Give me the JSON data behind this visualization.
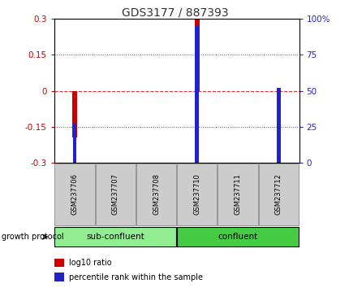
{
  "title": "GDS3177 / 887393",
  "samples": [
    "GSM237706",
    "GSM237707",
    "GSM237708",
    "GSM237710",
    "GSM237711",
    "GSM237712"
  ],
  "log10_ratio": [
    -0.195,
    0.0,
    0.0,
    0.295,
    0.0,
    0.0
  ],
  "percentile_rank": [
    27.0,
    50.0,
    50.0,
    95.0,
    50.0,
    52.0
  ],
  "ylim_left": [
    -0.3,
    0.3
  ],
  "ylim_right": [
    0,
    100
  ],
  "yticks_left": [
    -0.3,
    -0.15,
    0.0,
    0.15,
    0.3
  ],
  "yticks_right": [
    0,
    25,
    50,
    75,
    100
  ],
  "ytick_labels_left": [
    "-0.3",
    "-0.15",
    "0",
    "0.15",
    "0.3"
  ],
  "ytick_labels_right": [
    "0",
    "25",
    "50",
    "75",
    "100%"
  ],
  "dotted_lines_dotted": [
    -0.15,
    0.15
  ],
  "zero_line_y": 0.0,
  "zero_line_color": "#dd3333",
  "dotted_color": "#555555",
  "bar_color_log10": "#cc0000",
  "bar_color_pct": "#2222cc",
  "groups": [
    {
      "label": "sub-confluent",
      "samples": [
        0,
        1,
        2
      ],
      "color": "#90ee90"
    },
    {
      "label": "confluent",
      "samples": [
        3,
        4,
        5
      ],
      "color": "#44cc44"
    }
  ],
  "group_label": "growth protocol",
  "legend_items": [
    {
      "label": "log10 ratio",
      "color": "#cc0000"
    },
    {
      "label": "percentile rank within the sample",
      "color": "#2222cc"
    }
  ],
  "tick_label_color_left": "#cc0000",
  "tick_label_color_right": "#2222cc",
  "background_color": "#ffffff",
  "plot_bg": "#ffffff",
  "bar_width": 0.12,
  "sample_label_bg": "#cccccc",
  "sample_label_border": "#888888"
}
